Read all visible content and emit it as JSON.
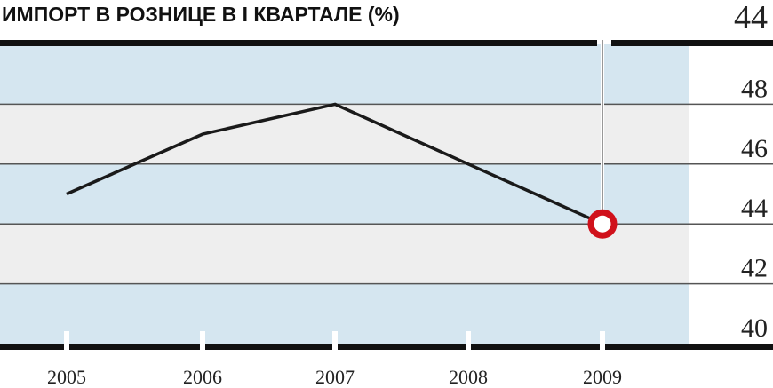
{
  "chart_data": {
    "type": "line",
    "title": "ИМПОРТ В РОЗНИЦЕ В I КВАРТАЛЕ (%)",
    "categories": [
      "2005",
      "2006",
      "2007",
      "2008",
      "2009"
    ],
    "values": [
      45,
      47,
      48,
      46,
      44
    ],
    "color": "#1a1a1a",
    "marker_color": "#d0111b",
    "band_colors": [
      "#d5e6f0",
      "#eeeeee"
    ],
    "ylim": [
      40,
      50
    ],
    "yticks": [
      40,
      42,
      44,
      46,
      48
    ],
    "grid": true
  }
}
